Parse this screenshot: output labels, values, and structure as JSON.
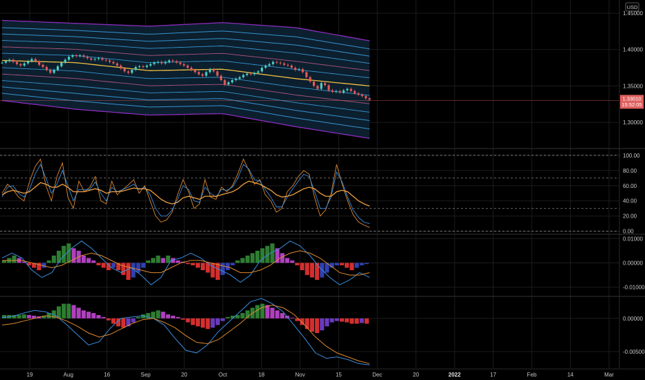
{
  "currency": "USD",
  "price_tag": {
    "price": "1.33010",
    "countdown": "15:52:05"
  },
  "colors": {
    "background": "#000000",
    "grid": "#1c1c1c",
    "separator": "#2a2a2a",
    "candle_up": "#4ecdc4",
    "candle_down": "#e05a5a",
    "band_fill": "#0d2233",
    "band_outer": "#9b30d0",
    "band_mid": "#3aa0e0",
    "band_inner": "#c05a8a",
    "basis": "#f0c040",
    "stoch_k": "#e08a30",
    "stoch_d": "#3a8ee0",
    "stoch_slow": "#f0a040",
    "hist_pos_strong": "#2e7d32",
    "hist_pos_weak": "#b040c0",
    "hist_neg_strong": "#d32f2f",
    "hist_neg_weak": "#3040b0",
    "hist2_neg": "#6a3ac0",
    "macd_line": "#3a8ee0",
    "signal_line": "#e08a30",
    "price_tag_bg": "#e06060"
  },
  "x_axis": {
    "labels": [
      {
        "text": "19",
        "bold": false
      },
      {
        "text": "Aug",
        "bold": false
      },
      {
        "text": "16",
        "bold": false
      },
      {
        "text": "Sep",
        "bold": false
      },
      {
        "text": "20",
        "bold": false
      },
      {
        "text": "Oct",
        "bold": false
      },
      {
        "text": "18",
        "bold": false
      },
      {
        "text": "Nov",
        "bold": false
      },
      {
        "text": "15",
        "bold": false
      },
      {
        "text": "Dec",
        "bold": false
      },
      {
        "text": "20",
        "bold": false
      },
      {
        "text": "2022",
        "bold": true
      },
      {
        "text": "17",
        "bold": false
      },
      {
        "text": "Feb",
        "bold": false
      },
      {
        "text": "14",
        "bold": false
      },
      {
        "text": "Mar",
        "bold": false
      }
    ]
  },
  "chart_data": [
    {
      "type": "candlestick",
      "title": "",
      "y_ticks": [
        "1.45000",
        "1.40000",
        "1.35000",
        "1.30000"
      ],
      "ylim": [
        1.265,
        1.468
      ],
      "last_price": 1.3301,
      "candles_approx_close": [
        1.382,
        1.384,
        1.386,
        1.383,
        1.38,
        1.378,
        1.381,
        1.384,
        1.387,
        1.384,
        1.379,
        1.376,
        1.372,
        1.368,
        1.372,
        1.377,
        1.382,
        1.386,
        1.39,
        1.392,
        1.391,
        1.392,
        1.39,
        1.388,
        1.386,
        1.387,
        1.388,
        1.386,
        1.385,
        1.383,
        1.381,
        1.378,
        1.374,
        1.37,
        1.368,
        1.372,
        1.376,
        1.377,
        1.376,
        1.378,
        1.38,
        1.382,
        1.383,
        1.381,
        1.383,
        1.385,
        1.384,
        1.382,
        1.38,
        1.378,
        1.375,
        1.372,
        1.369,
        1.366,
        1.364,
        1.369,
        1.373,
        1.37,
        1.364,
        1.358,
        1.352,
        1.355,
        1.358,
        1.36,
        1.362,
        1.365,
        1.367,
        1.366,
        1.368,
        1.37,
        1.375,
        1.378,
        1.38,
        1.383,
        1.382,
        1.381,
        1.379,
        1.378,
        1.375,
        1.372,
        1.373,
        1.369,
        1.362,
        1.356,
        1.35,
        1.346,
        1.354,
        1.351,
        1.344,
        1.342,
        1.343,
        1.341,
        1.344,
        1.346,
        1.343,
        1.34,
        1.338,
        1.336,
        1.333,
        1.331
      ],
      "bands": {
        "basis": [
          1.385,
          1.382,
          1.371,
          1.373,
          1.36,
          1.35
        ],
        "upper3": [
          1.44,
          1.436,
          1.432,
          1.437,
          1.43,
          1.412
        ],
        "lower3": [
          1.33,
          1.318,
          1.31,
          1.312,
          1.294,
          1.278
        ]
      }
    },
    {
      "type": "line",
      "title": "",
      "y_ticks": [
        "100.00",
        "80.00",
        "60.00",
        "40.00",
        "20.00",
        "0.00"
      ],
      "ylim": [
        -3,
        108
      ],
      "hlines_dashed": [
        100,
        70,
        30,
        0
      ],
      "series": [
        {
          "values": [
            50,
            62,
            55,
            45,
            40,
            65,
            85,
            95,
            60,
            40,
            72,
            90,
            45,
            30,
            66,
            52,
            58,
            72,
            40,
            36,
            66,
            48,
            55,
            61,
            68,
            50,
            60,
            40,
            20,
            12,
            15,
            25,
            48,
            68,
            52,
            30,
            36,
            68,
            45,
            42,
            58,
            52,
            60,
            76,
            95,
            80,
            62,
            68,
            48,
            40,
            25,
            30,
            52,
            60,
            72,
            80,
            75,
            44,
            20,
            28,
            50,
            88,
            62,
            40,
            22,
            12,
            8,
            5
          ]
        },
        {
          "values": [
            45,
            58,
            60,
            50,
            45,
            55,
            75,
            88,
            70,
            50,
            62,
            80,
            60,
            40,
            55,
            55,
            55,
            65,
            50,
            40,
            58,
            52,
            55,
            58,
            62,
            55,
            58,
            48,
            30,
            20,
            20,
            28,
            42,
            60,
            55,
            40,
            38,
            58,
            50,
            45,
            55,
            54,
            58,
            70,
            88,
            82,
            68,
            66,
            55,
            45,
            32,
            32,
            45,
            56,
            66,
            75,
            72,
            52,
            30,
            30,
            45,
            78,
            65,
            45,
            28,
            18,
            12,
            10
          ]
        },
        {
          "values": [
            48,
            52,
            54,
            52,
            50,
            52,
            58,
            64,
            62,
            58,
            58,
            62,
            58,
            52,
            52,
            52,
            54,
            56,
            54,
            50,
            52,
            52,
            53,
            55,
            57,
            56,
            56,
            54,
            48,
            42,
            38,
            36,
            38,
            44,
            46,
            44,
            42,
            46,
            46,
            46,
            48,
            50,
            52,
            56,
            62,
            66,
            64,
            62,
            58,
            54,
            48,
            45,
            46,
            48,
            52,
            56,
            58,
            56,
            50,
            46,
            46,
            52,
            54,
            52,
            46,
            40,
            36,
            33
          ]
        }
      ]
    },
    {
      "type": "bar",
      "title": "",
      "y_ticks": [
        "0.01000",
        "0.00000",
        "-0.01000"
      ],
      "ylim": [
        -0.0135,
        0.0115
      ],
      "histogram": [
        0.001,
        0.002,
        0.003,
        0.002,
        0.0005,
        -0.001,
        -0.002,
        -0.003,
        -0.002,
        0.001,
        0.003,
        0.005,
        0.007,
        0.008,
        0.006,
        0.005,
        0.003,
        0.002,
        0.001,
        -0.001,
        -0.002,
        -0.003,
        -0.002,
        -0.003,
        -0.005,
        -0.007,
        -0.006,
        -0.004,
        -0.002,
        0.001,
        0.002,
        0.003,
        0.002,
        0.003,
        0.002,
        0.001,
        0.0005,
        -0.0005,
        -0.001,
        -0.002,
        -0.003,
        -0.004,
        -0.006,
        -0.007,
        -0.005,
        -0.003,
        -0.001,
        0.001,
        0.002,
        0.003,
        0.004,
        0.005,
        0.006,
        0.007,
        0.008,
        0.006,
        0.004,
        0.002,
        0.001,
        -0.001,
        -0.003,
        -0.005,
        -0.006,
        -0.007,
        -0.006,
        -0.004,
        -0.002,
        -0.001,
        -0.001,
        -0.002,
        -0.003,
        -0.002,
        -0.001,
        -0.0005
      ],
      "series": [
        {
          "values": [
            0.002,
            0.004,
            0.002,
            -0.003,
            -0.006,
            -0.004,
            0.002,
            0.006,
            0.009,
            0.006,
            0.002,
            -0.002,
            -0.004,
            -0.002,
            -0.005,
            -0.009,
            -0.006,
            0.001,
            0.002,
            0.004,
            0.002,
            -0.001,
            -0.003,
            -0.005,
            -0.008,
            -0.005,
            0.001,
            0.004,
            0.006,
            0.009,
            0.007,
            0.003,
            -0.002,
            -0.006,
            -0.009,
            -0.007,
            -0.004,
            -0.006
          ]
        },
        {
          "values": [
            0.001,
            0.001,
            0.001,
            0.0,
            -0.001,
            -0.002,
            -0.001,
            0.001,
            0.003,
            0.004,
            0.003,
            0.001,
            -0.001,
            -0.002,
            -0.003,
            -0.004,
            -0.004,
            -0.002,
            0.0,
            0.001,
            0.001,
            0.0,
            -0.001,
            -0.002,
            -0.004,
            -0.004,
            -0.003,
            -0.001,
            0.002,
            0.004,
            0.005,
            0.004,
            0.002,
            -0.001,
            -0.004,
            -0.005,
            -0.005,
            -0.004
          ]
        }
      ]
    },
    {
      "type": "bar",
      "title": "",
      "y_ticks": [
        "0.00000",
        "-0.00500"
      ],
      "ylim": [
        -0.0075,
        0.0032
      ],
      "histogram": [
        0.0005,
        0.0005,
        0.0005,
        0.0005,
        0.0006,
        0.0005,
        0.0004,
        0.0003,
        0.0004,
        0.0008,
        0.0012,
        0.0018,
        0.0022,
        0.0022,
        0.002,
        0.0016,
        0.0012,
        0.001,
        0.0008,
        0.0005,
        0.0002,
        -0.0003,
        -0.0008,
        -0.0012,
        -0.0014,
        -0.0012,
        -0.0006,
        0.0002,
        0.0006,
        0.0008,
        0.001,
        0.0012,
        0.001,
        0.0006,
        0.0004,
        0.0002,
        -0.0002,
        -0.0006,
        -0.001,
        -0.0012,
        -0.0014,
        -0.0016,
        -0.0014,
        -0.001,
        -0.0004,
        0.0002,
        0.0004,
        0.0005,
        0.0008,
        0.0012,
        0.0016,
        0.002,
        0.0022,
        0.002,
        0.0016,
        0.0012,
        0.0008,
        0.0004,
        0.0001,
        -0.0004,
        -0.001,
        -0.0016,
        -0.002,
        -0.0022,
        -0.0018,
        -0.0012,
        -0.0006,
        -0.0004,
        -0.0005,
        -0.0006,
        -0.0008,
        -0.0008,
        -0.0007,
        -0.0008
      ],
      "series": [
        {
          "values": [
            0.0001,
            0.0003,
            0.0008,
            0.0012,
            0.001,
            0.0004,
            -0.001,
            -0.0025,
            -0.004,
            -0.0035,
            -0.0015,
            0.0,
            0.0002,
            0.0004,
            0.0,
            -0.001,
            -0.003,
            -0.0048,
            -0.0052,
            -0.004,
            -0.002,
            -0.0005,
            0.001,
            0.0025,
            0.003,
            0.0022,
            0.001,
            -0.001,
            -0.003,
            -0.0052,
            -0.006,
            -0.0058,
            -0.0062,
            -0.0068,
            -0.007
          ]
        },
        {
          "values": [
            -0.001,
            -0.0008,
            -0.0004,
            0.0,
            0.0004,
            0.0002,
            -0.0004,
            -0.0012,
            -0.0022,
            -0.0028,
            -0.0024,
            -0.0016,
            -0.0008,
            -0.0002,
            0.0,
            -0.0006,
            -0.0014,
            -0.0026,
            -0.0036,
            -0.0038,
            -0.0032,
            -0.002,
            -0.0008,
            0.0006,
            0.0016,
            0.002,
            0.0016,
            0.0006,
            -0.001,
            -0.0028,
            -0.0042,
            -0.0052,
            -0.0058,
            -0.0064,
            -0.0068
          ]
        }
      ]
    }
  ]
}
